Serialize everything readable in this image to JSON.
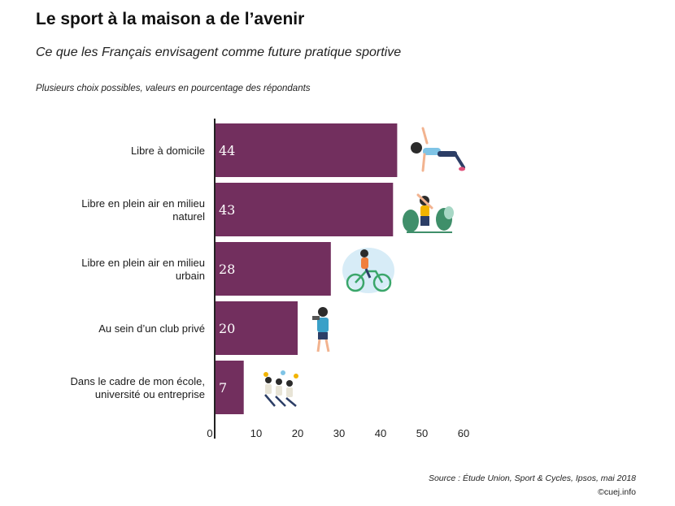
{
  "header": {
    "title": "Le sport à la maison a de l’avenir",
    "subtitle": "Ce que les Français envisagent comme future pratique sportive",
    "note": "Plusieurs choix possibles, valeurs en pourcentage des répondants"
  },
  "footer": {
    "source": "Source : Étude Union, Sport & Cycles, Ipsos, mai 2018",
    "credit": "©cuej.info"
  },
  "chart_data": {
    "type": "bar",
    "orientation": "horizontal",
    "categories": [
      [
        "Libre à domicile"
      ],
      [
        "Libre en plein air en milieu",
        "naturel"
      ],
      [
        "Libre en plein air en milieu",
        "urbain"
      ],
      [
        "Au sein d’un club privé"
      ],
      [
        "Dans le cadre de mon école,",
        "université ou entreprise"
      ]
    ],
    "values": [
      44,
      43,
      28,
      20,
      7
    ],
    "value_labels": [
      "44",
      "43",
      "28",
      "20",
      "7"
    ],
    "xlim": [
      0,
      60
    ],
    "ticks": [
      "0",
      "10",
      "20",
      "30",
      "40",
      "50",
      "60"
    ],
    "grid": false,
    "bar_color": "#722f5e",
    "icons": [
      "yoga-pose-icon",
      "outdoor-stretch-icon",
      "cyclist-icon",
      "gym-weights-icon",
      "group-exercise-icon"
    ]
  }
}
